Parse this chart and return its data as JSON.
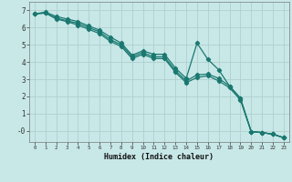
{
  "title": "",
  "xlabel": "Humidex (Indice chaleur)",
  "bg_color": "#c8e8e8",
  "grid_color": "#b0d0d0",
  "line_color": "#1a7870",
  "xlim": [
    -0.5,
    23.5
  ],
  "ylim": [
    -0.65,
    7.5
  ],
  "xticks": [
    0,
    1,
    2,
    3,
    4,
    5,
    6,
    7,
    8,
    9,
    10,
    11,
    12,
    13,
    14,
    15,
    16,
    17,
    18,
    19,
    20,
    21,
    22,
    23
  ],
  "yticks": [
    0,
    1,
    2,
    3,
    4,
    5,
    6,
    7
  ],
  "ytick_labels": [
    "-0",
    "1",
    "2",
    "3",
    "4",
    "5",
    "6",
    "7"
  ],
  "series1_x": [
    0,
    1,
    2,
    3,
    4,
    5,
    6,
    7,
    8,
    9,
    10,
    11,
    12,
    13,
    14,
    15,
    16,
    17,
    18,
    19,
    20,
    21,
    22,
    23
  ],
  "series1_y": [
    6.8,
    6.9,
    6.65,
    6.5,
    6.35,
    6.1,
    5.85,
    5.45,
    5.1,
    4.4,
    4.65,
    4.45,
    4.45,
    3.65,
    3.05,
    5.1,
    4.15,
    3.55,
    2.6,
    1.9,
    -0.05,
    -0.1,
    -0.2,
    -0.4
  ],
  "series2_x": [
    0,
    1,
    2,
    3,
    4,
    5,
    6,
    7,
    8,
    9,
    10,
    11,
    12,
    13,
    14,
    15,
    16,
    17,
    18,
    19,
    20,
    21,
    22,
    23
  ],
  "series2_y": [
    6.8,
    6.85,
    6.55,
    6.4,
    6.25,
    6.0,
    5.75,
    5.3,
    5.0,
    4.3,
    4.55,
    4.3,
    4.3,
    3.5,
    2.9,
    3.25,
    3.3,
    3.05,
    2.6,
    1.9,
    -0.05,
    -0.1,
    -0.2,
    -0.4
  ],
  "series3_x": [
    0,
    1,
    2,
    3,
    4,
    5,
    6,
    7,
    8,
    9,
    10,
    11,
    12,
    13,
    14,
    15,
    16,
    17,
    18,
    19,
    20,
    21,
    22,
    23
  ],
  "series3_y": [
    6.8,
    6.85,
    6.5,
    6.35,
    6.15,
    5.9,
    5.65,
    5.2,
    4.9,
    4.2,
    4.45,
    4.2,
    4.2,
    3.4,
    2.8,
    3.1,
    3.2,
    2.9,
    2.5,
    1.8,
    -0.05,
    -0.1,
    -0.2,
    -0.4
  ]
}
